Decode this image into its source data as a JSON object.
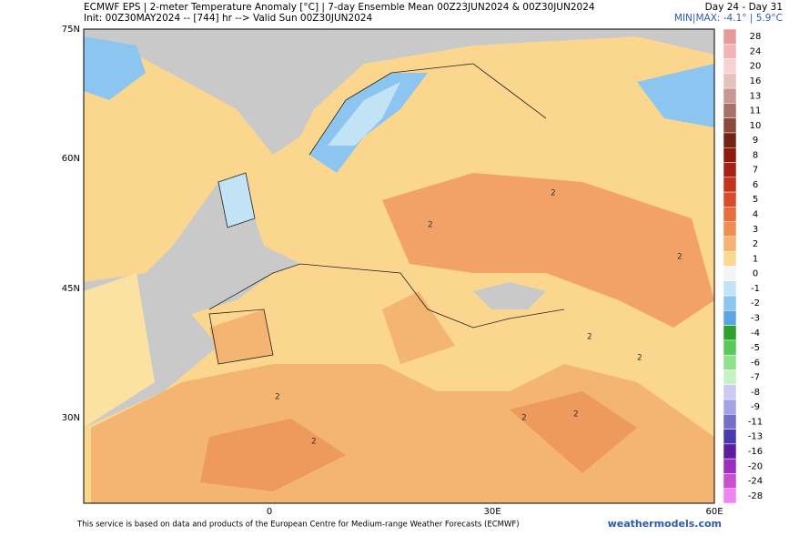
{
  "header": {
    "line1": "ECMWF EPS | 2-meter Temperature Anomaly [°C] | 7-day Ensemble Mean 00Z23JUN2024 & 00Z30JUN2024",
    "line2": "Init: 00Z30MAY2024 -- [744] hr --> Valid Sun 00Z30JUN2024",
    "period": "Day 24 - Day 31",
    "minmax": "MIN|MAX: -4.1° | 5.9°C"
  },
  "map": {
    "lat_labels": [
      "75N",
      "60N",
      "45N",
      "30N"
    ],
    "lon_labels": [
      "0",
      "30E",
      "60E"
    ],
    "contour_labels": [
      "2",
      "2",
      "2",
      "2",
      "2",
      "2",
      "2",
      "2",
      "2"
    ]
  },
  "colorbar": {
    "entries": [
      {
        "label": 28,
        "color": "#e89a9a"
      },
      {
        "label": 24,
        "color": "#f2b4b4"
      },
      {
        "label": 20,
        "color": "#f8d2d2"
      },
      {
        "label": 16,
        "color": "#e4c2bc"
      },
      {
        "label": 13,
        "color": "#c89890"
      },
      {
        "label": 11,
        "color": "#a87268"
      },
      {
        "label": 10,
        "color": "#8a4a3c"
      },
      {
        "label": 9,
        "color": "#742414"
      },
      {
        "label": 8,
        "color": "#8e1a0e"
      },
      {
        "label": 7,
        "color": "#a82214"
      },
      {
        "label": 6,
        "color": "#c4321c"
      },
      {
        "label": 5,
        "color": "#dc4a2c"
      },
      {
        "label": 4,
        "color": "#e86c3c"
      },
      {
        "label": 3,
        "color": "#f08e52"
      },
      {
        "label": 2,
        "color": "#f6b272"
      },
      {
        "label": 1,
        "color": "#fbd890"
      },
      {
        "label": 0,
        "color": "#f4f4f4"
      },
      {
        "label": -1,
        "color": "#c2e2f6"
      },
      {
        "label": -2,
        "color": "#8cc6f0"
      },
      {
        "label": -3,
        "color": "#58a6e6"
      },
      {
        "label": -4,
        "color": "#2ea02e"
      },
      {
        "label": -5,
        "color": "#58c858"
      },
      {
        "label": -6,
        "color": "#90e090"
      },
      {
        "label": -7,
        "color": "#c4f2c4"
      },
      {
        "label": -8,
        "color": "#cccaf2"
      },
      {
        "label": -9,
        "color": "#a4a2e2"
      },
      {
        "label": -11,
        "color": "#7470c8"
      },
      {
        "label": -13,
        "color": "#4a3aae"
      },
      {
        "label": -16,
        "color": "#5c1e9e"
      },
      {
        "label": -20,
        "color": "#9c2ebe"
      },
      {
        "label": -24,
        "color": "#cc4ed0"
      },
      {
        "label": -28,
        "color": "#f084f0"
      }
    ]
  },
  "footer": {
    "credit": "This service is based on data and products of the European Centre for Medium-range Weather Forecasts (ECMWF)",
    "site": "weathermodels.com"
  }
}
